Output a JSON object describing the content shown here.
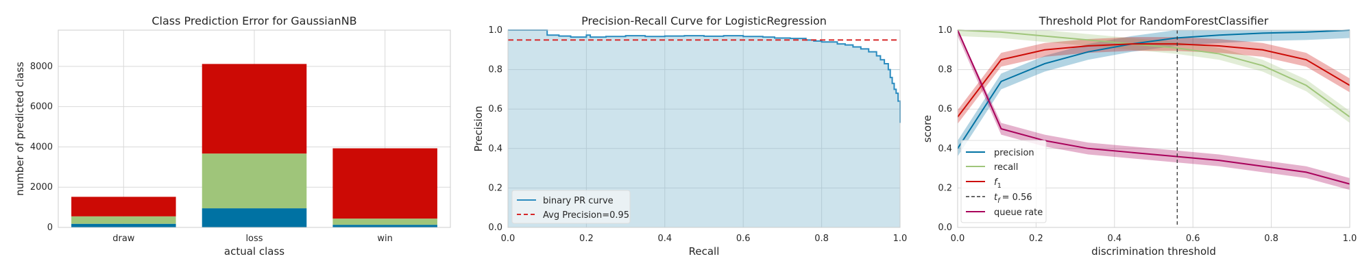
{
  "chart_data": [
    {
      "type": "bar",
      "stacked": true,
      "title": "Class Prediction Error for GaussianNB",
      "xlabel": "actual class",
      "ylabel": "number of predicted class",
      "categories": [
        "draw",
        "loss",
        "win"
      ],
      "ylim": [
        0,
        9800
      ],
      "yticks": [
        0,
        2000,
        4000,
        6000,
        8000
      ],
      "grid": true,
      "series": [
        {
          "values": [
            180,
            950,
            130
          ],
          "color": "#0072a3"
        },
        {
          "values": [
            370,
            2720,
            310
          ],
          "color": "#9fc57a"
        },
        {
          "values": [
            970,
            4450,
            3490
          ],
          "color": "#cc0a05"
        }
      ]
    },
    {
      "type": "area",
      "title": "Precision-Recall Curve for LogisticRegression",
      "xlabel": "Recall",
      "ylabel": "Precision",
      "xlim": [
        0,
        1
      ],
      "ylim": [
        0,
        1
      ],
      "xticks": [
        "0.0",
        "0.2",
        "0.4",
        "0.6",
        "0.8",
        "1.0"
      ],
      "yticks": [
        "0.0",
        "0.2",
        "0.4",
        "0.6",
        "0.8",
        "1.0"
      ],
      "grid": true,
      "legend": {
        "position": "lower-left",
        "entries": [
          "binary PR curve",
          "Avg Precision=0.95"
        ]
      },
      "avg_precision": 0.95,
      "colors": {
        "curve": "#2a8bbf",
        "fill": "#cde3ec",
        "avg": "#d62728"
      },
      "series": [
        {
          "name": "binary PR curve",
          "x": [
            0.0,
            0.1,
            0.1,
            0.13,
            0.16,
            0.2,
            0.21,
            0.25,
            0.3,
            0.35,
            0.4,
            0.45,
            0.5,
            0.55,
            0.6,
            0.65,
            0.68,
            0.72,
            0.76,
            0.78,
            0.8,
            0.84,
            0.86,
            0.88,
            0.9,
            0.92,
            0.94,
            0.95,
            0.96,
            0.97,
            0.975,
            0.98,
            0.985,
            0.99,
            0.995,
            1.0,
            1.0
          ],
          "y": [
            1.0,
            1.0,
            0.975,
            0.97,
            0.965,
            0.975,
            0.965,
            0.968,
            0.972,
            0.968,
            0.97,
            0.972,
            0.969,
            0.972,
            0.968,
            0.965,
            0.96,
            0.958,
            0.95,
            0.945,
            0.94,
            0.93,
            0.925,
            0.915,
            0.905,
            0.89,
            0.87,
            0.85,
            0.83,
            0.8,
            0.76,
            0.73,
            0.7,
            0.68,
            0.64,
            0.6,
            0.53
          ]
        }
      ]
    },
    {
      "type": "line",
      "title": "Threshold Plot for RandomForestClassifier",
      "xlabel": "discrimination threshold",
      "ylabel": "score",
      "xlim": [
        0,
        1
      ],
      "ylim": [
        0,
        1
      ],
      "xticks": [
        "0.0",
        "0.2",
        "0.4",
        "0.6",
        "0.8",
        "1.0"
      ],
      "yticks": [
        "0.0",
        "0.2",
        "0.4",
        "0.6",
        "0.8",
        "1.0"
      ],
      "grid": true,
      "legend": {
        "position": "lower-left"
      },
      "threshold": {
        "value": 0.56
      },
      "x": [
        0.0,
        0.111,
        0.222,
        0.333,
        0.444,
        0.556,
        0.667,
        0.778,
        0.889,
        1.0
      ],
      "series": [
        {
          "name": "precision",
          "color": "#0072a3",
          "values": [
            0.4,
            0.74,
            0.83,
            0.89,
            0.93,
            0.96,
            0.975,
            0.985,
            0.99,
            1.0
          ],
          "band": 0.04
        },
        {
          "name": "recall",
          "color": "#9fc57a",
          "values": [
            1.0,
            0.99,
            0.97,
            0.95,
            0.93,
            0.91,
            0.88,
            0.82,
            0.72,
            0.56
          ],
          "band": 0.03
        },
        {
          "name": "f1",
          "color": "#cc0a05",
          "values": [
            0.56,
            0.85,
            0.9,
            0.92,
            0.93,
            0.93,
            0.92,
            0.9,
            0.85,
            0.72
          ],
          "band": 0.035
        },
        {
          "name": "queue rate",
          "color": "#a8005a",
          "values": [
            1.0,
            0.5,
            0.44,
            0.4,
            0.38,
            0.36,
            0.34,
            0.31,
            0.28,
            0.22
          ],
          "band": 0.03
        }
      ],
      "legend_labels": {
        "precision": "precision",
        "recall": "recall",
        "f1_base": "f",
        "f1_sub": "1",
        "threshold_base": "t",
        "threshold_sub": "f",
        "threshold_value": "= 0.56",
        "queue": "queue rate"
      }
    }
  ]
}
